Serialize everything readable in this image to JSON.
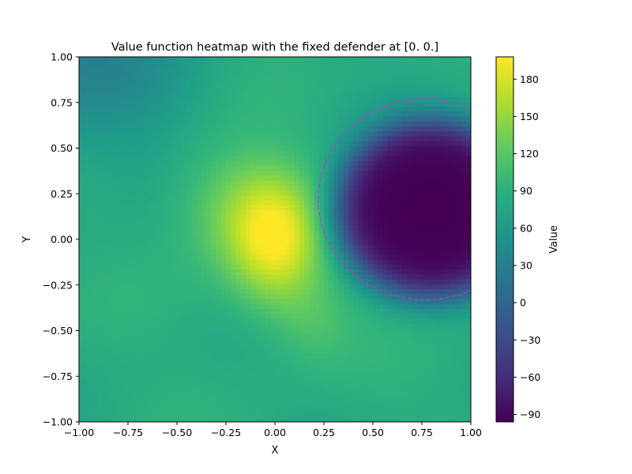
{
  "chart_data": {
    "type": "heatmap",
    "title": "Value function heatmap with the fixed defender at [0. 0.]",
    "xlabel": "X",
    "ylabel": "Y",
    "xlim": [
      -1.0,
      1.0
    ],
    "ylim": [
      -1.0,
      1.0
    ],
    "x_ticks": [
      "−1.00",
      "−0.75",
      "−0.50",
      "−0.25",
      "0.00",
      "0.25",
      "0.50",
      "0.75",
      "1.00"
    ],
    "y_ticks": [
      "−1.00",
      "−0.75",
      "−0.50",
      "−0.25",
      "0.00",
      "0.25",
      "0.50",
      "0.75",
      "1.00"
    ],
    "x_tick_values": [
      -1.0,
      -0.75,
      -0.5,
      -0.25,
      0.0,
      0.25,
      0.5,
      0.75,
      1.0
    ],
    "y_tick_values": [
      -1.0,
      -0.75,
      -0.5,
      -0.25,
      0.0,
      0.25,
      0.5,
      0.75,
      1.0
    ],
    "colormap": "viridis",
    "colorbar": {
      "label": "Value",
      "range": [
        -96,
        198
      ],
      "ticks": [
        "−90",
        "−60",
        "−30",
        "0",
        "30",
        "60",
        "90",
        "120",
        "150",
        "180"
      ],
      "tick_values": [
        -90,
        -60,
        -30,
        0,
        30,
        60,
        90,
        120,
        150,
        180
      ]
    },
    "features": {
      "peak": {
        "x": 0.0,
        "y": 0.0,
        "value": 190
      },
      "low_region_center": {
        "x": 0.8,
        "y": 0.17,
        "value": -96
      },
      "background_value": 85,
      "upper_left_value": 40
    },
    "circle": {
      "center_x": 0.77,
      "center_y": 0.22,
      "radius": 0.55,
      "color": "#d62ad6",
      "style": "dashed"
    }
  }
}
